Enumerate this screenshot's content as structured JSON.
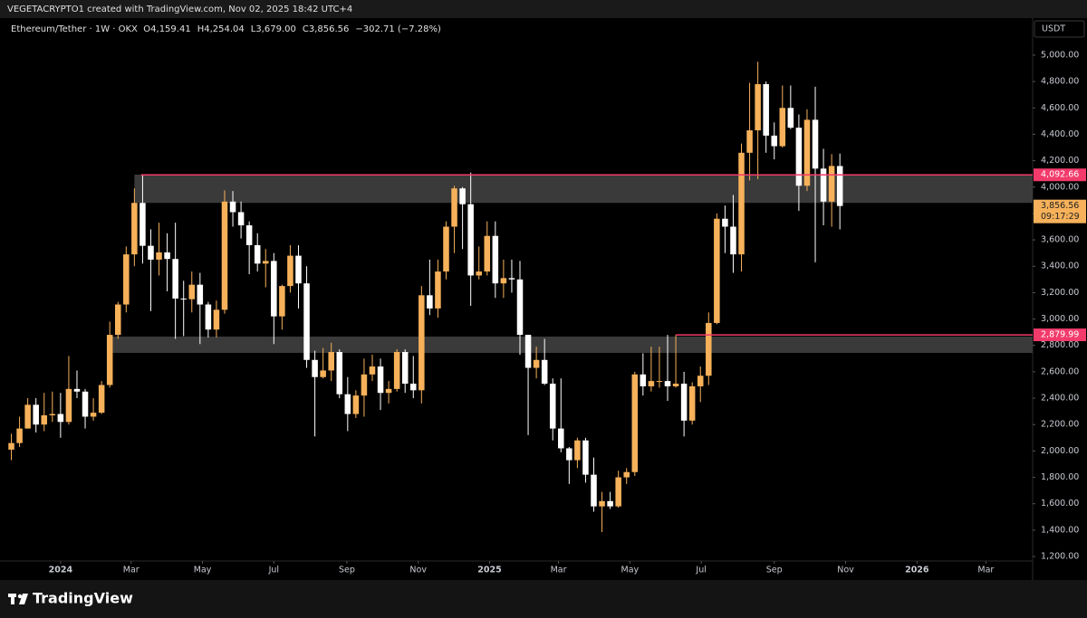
{
  "chart_data": {
    "type": "candlestick",
    "title": "VEGETACRYPTO1 created with TradingView.com, Nov 02, 2025 18:42 UTC+4",
    "subtitle": "Ethereum/Tether · 1W · OKX",
    "ohlc_labels": [
      "O4,159.41",
      "H4,254.04",
      "L3,679.00",
      "C3,856.56",
      "−302.71 (−7.28%)"
    ],
    "currency": "USDT",
    "brand": "TradingView",
    "up_color": "#f6b15a",
    "down_color": "#ffffff",
    "open": [
      2010,
      2060,
      2170,
      2350,
      2200,
      2270,
      2280,
      2220,
      2470,
      2450,
      2260,
      2290,
      2500,
      2880,
      3110,
      3490,
      3880,
      3555,
      3450,
      3505,
      3455,
      3155,
      3150,
      3260,
      3110,
      2920,
      3070,
      3890,
      3810,
      3710,
      3560,
      3420,
      3440,
      3020,
      3250,
      3480,
      3270,
      2690,
      2560,
      2610,
      2750,
      2430,
      2280,
      2420,
      2580,
      2640,
      2440,
      2470,
      2750,
      2510,
      2460,
      3180,
      3080,
      3360,
      3700,
      3990,
      3870,
      3330,
      3360,
      3630,
      3270,
      3310,
      3300,
      2880,
      2630,
      2690,
      2510,
      2170,
      2020,
      1930,
      2080,
      1820,
      1580,
      1620,
      1580,
      1800,
      1840,
      2580,
      2490,
      2530,
      2530,
      2490,
      2510,
      2230,
      2490,
      2570,
      2970,
      3760,
      3700,
      3490,
      4260,
      4430,
      4780,
      4390,
      4310,
      4600,
      4450,
      4010,
      4510,
      4140,
      3890,
      4159.41
    ],
    "high": [
      2130,
      2260,
      2400,
      2400,
      2440,
      2450,
      2440,
      2720,
      2610,
      2470,
      2400,
      2530,
      2980,
      3130,
      3550,
      3990,
      4093,
      3680,
      3730,
      3650,
      3730,
      3290,
      3360,
      3350,
      3130,
      3140,
      3975,
      3970,
      3890,
      3740,
      3650,
      3530,
      3500,
      3260,
      3560,
      3560,
      3400,
      2760,
      2780,
      2820,
      2770,
      2560,
      2460,
      2700,
      2730,
      2700,
      2530,
      2770,
      2770,
      2720,
      3250,
      3450,
      3450,
      3740,
      4010,
      4000,
      4110,
      3550,
      3740,
      3740,
      3450,
      3450,
      3440,
      2880,
      2790,
      2850,
      2550,
      2550,
      2030,
      2100,
      2100,
      1950,
      1690,
      1690,
      1850,
      1870,
      2600,
      2740,
      2790,
      2790,
      2880,
      2880,
      2600,
      2520,
      2640,
      3050,
      3800,
      3860,
      3940,
      4330,
      4790,
      4950,
      4800,
      4490,
      4770,
      4770,
      4550,
      4590,
      4760,
      4290,
      4250,
      4254.04
    ],
    "low": [
      1930,
      2030,
      2170,
      2140,
      2150,
      2220,
      2100,
      2200,
      2400,
      2170,
      2230,
      2280,
      2480,
      2850,
      3050,
      3400,
      3420,
      3060,
      3330,
      3210,
      2850,
      2870,
      3050,
      2810,
      2860,
      2860,
      3040,
      3700,
      3610,
      3340,
      3360,
      3240,
      2810,
      2920,
      3200,
      3080,
      2630,
      2110,
      2550,
      2530,
      2400,
      2150,
      2250,
      2260,
      2530,
      2310,
      2360,
      2450,
      2440,
      2400,
      2360,
      3030,
      3010,
      3300,
      3500,
      3530,
      3100,
      3300,
      3330,
      3160,
      3160,
      3200,
      2730,
      2120,
      2550,
      2500,
      2080,
      1990,
      1750,
      1870,
      1760,
      1540,
      1385,
      1560,
      1570,
      1750,
      1810,
      2420,
      2450,
      2480,
      2380,
      2480,
      2110,
      2200,
      2370,
      2500,
      2960,
      3500,
      3350,
      3360,
      4050,
      4060,
      4260,
      4210,
      4300,
      4440,
      3820,
      3970,
      3430,
      3710,
      3700,
      3679
    ],
    "close": [
      2060,
      2170,
      2350,
      2200,
      2270,
      2280,
      2220,
      2470,
      2450,
      2260,
      2290,
      2500,
      2880,
      3110,
      3490,
      3880,
      3555,
      3450,
      3505,
      3455,
      3155,
      3150,
      3260,
      3110,
      2920,
      3070,
      3890,
      3810,
      3710,
      3560,
      3420,
      3440,
      3020,
      3250,
      3480,
      3270,
      2690,
      2560,
      2610,
      2750,
      2430,
      2280,
      2420,
      2580,
      2640,
      2440,
      2470,
      2750,
      2510,
      2460,
      3180,
      3080,
      3360,
      3700,
      3990,
      3870,
      3330,
      3360,
      3630,
      3270,
      3310,
      3300,
      2880,
      2630,
      2690,
      2510,
      2170,
      2020,
      1930,
      2080,
      1820,
      1580,
      1620,
      1580,
      1800,
      1840,
      2580,
      2490,
      2530,
      2530,
      2490,
      2510,
      2230,
      2490,
      2570,
      2970,
      3760,
      3700,
      3490,
      4260,
      4430,
      4780,
      4390,
      4310,
      4600,
      4450,
      4010,
      4510,
      4140,
      3890,
      4160,
      3856.56
    ],
    "xlim": [
      -0.5,
      124.5
    ],
    "xticks": [
      {
        "value": 6,
        "label": "2024"
      },
      {
        "value": 14.6,
        "label": "Mar"
      },
      {
        "value": 23.3,
        "label": "May"
      },
      {
        "value": 32,
        "label": "Jul"
      },
      {
        "value": 40.9,
        "label": "Sep"
      },
      {
        "value": 49.6,
        "label": "Nov"
      },
      {
        "value": 58.3,
        "label": "2025"
      },
      {
        "value": 66.7,
        "label": "Mar"
      },
      {
        "value": 75.4,
        "label": "May"
      },
      {
        "value": 84.1,
        "label": "Jul"
      },
      {
        "value": 93,
        "label": "Sep"
      },
      {
        "value": 101.7,
        "label": "Nov"
      },
      {
        "value": 110.4,
        "label": "2026"
      },
      {
        "value": 118.8,
        "label": "Mar"
      }
    ],
    "ylim": [
      1166,
      5267
    ],
    "yticks": [
      {
        "value": 1200,
        "label": "1,200.00"
      },
      {
        "value": 1400,
        "label": "1,400.00"
      },
      {
        "value": 1600,
        "label": "1,600.00"
      },
      {
        "value": 1800,
        "label": "1,800.00"
      },
      {
        "value": 2000,
        "label": "2,000.00"
      },
      {
        "value": 2200,
        "label": "2,200.00"
      },
      {
        "value": 2400,
        "label": "2,400.00"
      },
      {
        "value": 2600,
        "label": "2,600.00"
      },
      {
        "value": 2800,
        "label": "2,800.00"
      },
      {
        "value": 3000,
        "label": "3,000.00"
      },
      {
        "value": 3200,
        "label": "3,200.00"
      },
      {
        "value": 3400,
        "label": "3,400.00"
      },
      {
        "value": 3600,
        "label": "3,600.00"
      },
      {
        "value": 3800,
        "label": "3,800.00"
      },
      {
        "value": 4000,
        "label": "4,000.00"
      },
      {
        "value": 4200,
        "label": "4,200.00"
      },
      {
        "value": 4400,
        "label": "4,400.00"
      },
      {
        "value": 4600,
        "label": "4,600.00"
      },
      {
        "value": 4800,
        "label": "4,800.00"
      },
      {
        "value": 5000,
        "label": "5,000.00"
      }
    ],
    "zones": [
      {
        "low": 3880,
        "high": 4094,
        "start": 15.0,
        "color": "#3a3a3a"
      },
      {
        "low": 2743,
        "high": 2867,
        "start": 11.9,
        "color": "#3a3a3a"
      }
    ],
    "levels": [
      {
        "value": 4092.66,
        "label": "4,092.66",
        "start": 15.8,
        "color": "#f23b6b"
      },
      {
        "value": 2879.99,
        "label": "2,879.99",
        "start": 81,
        "color": "#f23b6b"
      }
    ],
    "last_price": {
      "value": 3856.56,
      "label": "3,856.56",
      "countdown": "09:17:29",
      "color": "#f6b15a"
    }
  }
}
